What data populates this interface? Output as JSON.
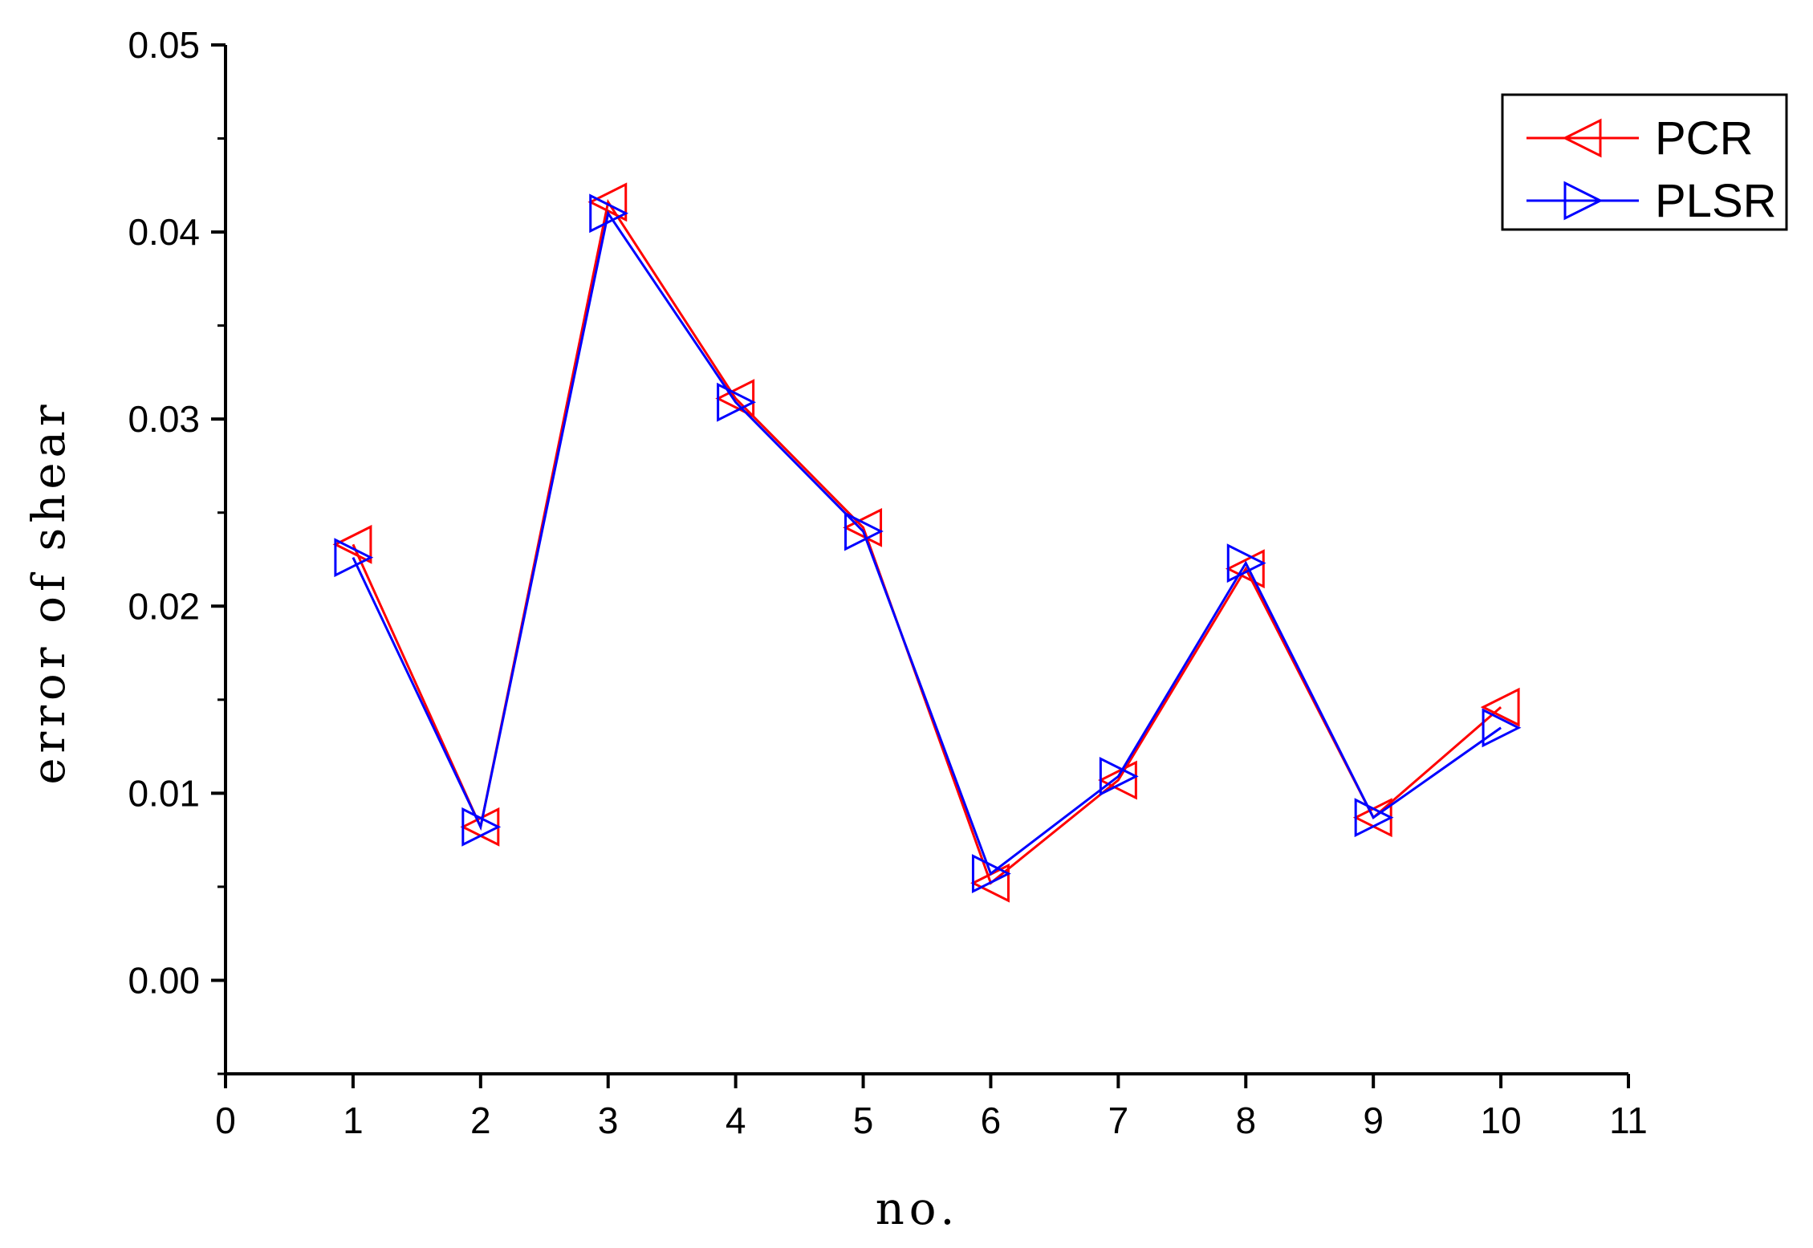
{
  "chart_data": {
    "type": "line",
    "title": "",
    "xlabel": "no.",
    "ylabel": "error of shear",
    "xlim": [
      0,
      11
    ],
    "ylim": [
      -0.005,
      0.05
    ],
    "xticks": [
      "0",
      "1",
      "2",
      "3",
      "4",
      "5",
      "6",
      "7",
      "8",
      "9",
      "10",
      "11"
    ],
    "yticks": [
      "0.00",
      "0.01",
      "0.02",
      "0.03",
      "0.04",
      "0.05"
    ],
    "x": [
      1,
      2,
      3,
      4,
      5,
      6,
      7,
      8,
      9,
      10
    ],
    "series": [
      {
        "name": "PCR",
        "color": "#ff0000",
        "marker": "triangle-left",
        "values": [
          0.0233,
          0.0082,
          0.0416,
          0.0311,
          0.0242,
          0.0052,
          0.0107,
          0.022,
          0.0087,
          0.0146
        ]
      },
      {
        "name": "PLSR",
        "color": "#0000ff",
        "marker": "triangle-right",
        "values": [
          0.0226,
          0.0082,
          0.041,
          0.0309,
          0.024,
          0.0057,
          0.0109,
          0.0223,
          0.0087,
          0.0135
        ]
      }
    ],
    "legend_position": "top-right",
    "grid": false
  }
}
